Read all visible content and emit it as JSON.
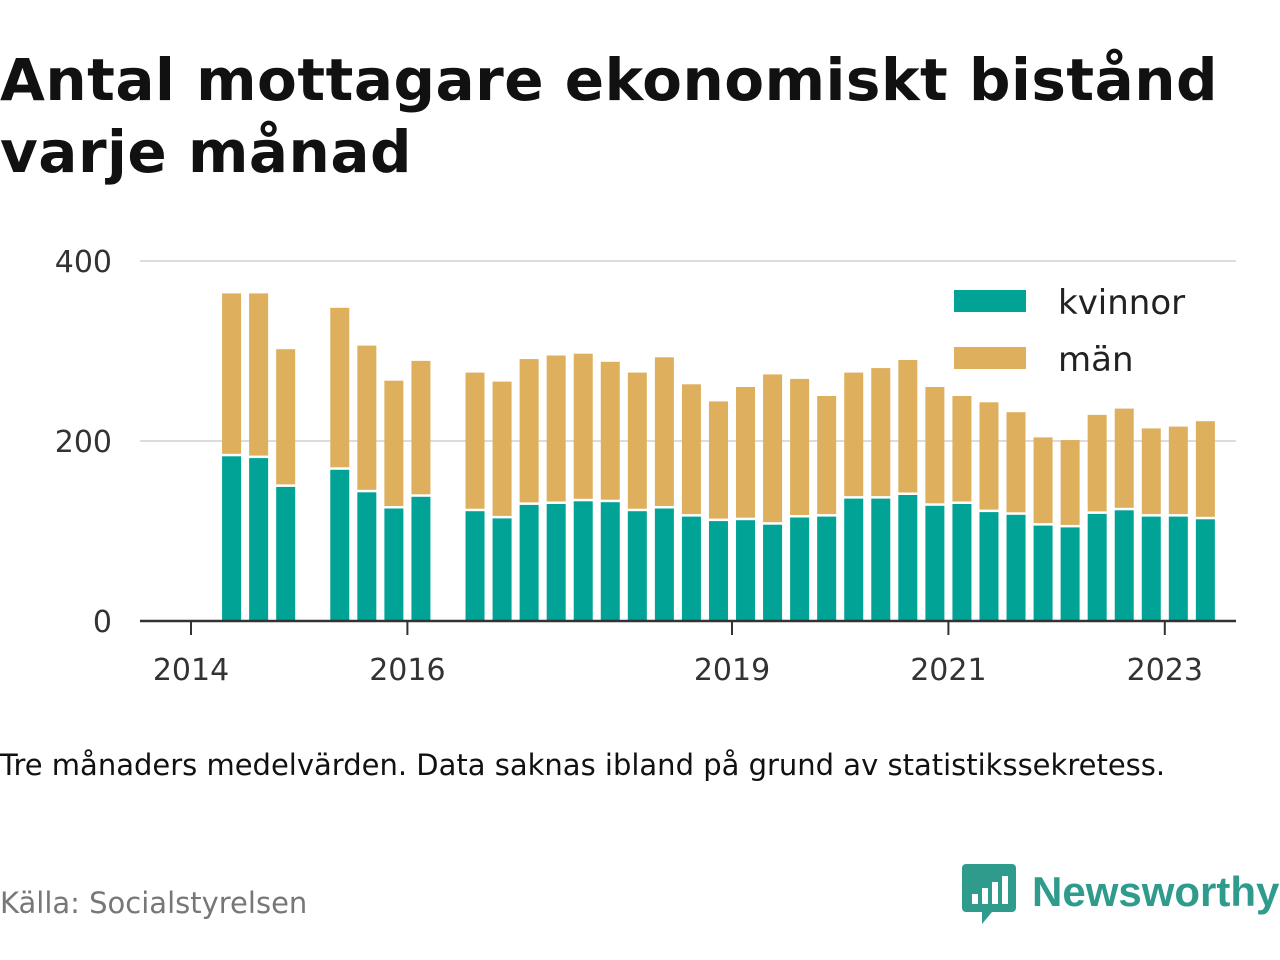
{
  "title": "Antal mottagare ekonomiskt bistånd varje månad",
  "note": "Tre månaders medelvärden. Data saknas ibland på grund av statistikssekretess.",
  "source": "Källa: Socialstyrelsen",
  "brand": {
    "name": "Newsworthy",
    "icon": "newsworthy-logo-icon",
    "color": "#2e9b8c"
  },
  "chart_data": {
    "type": "bar",
    "stacked": true,
    "x_type": "quarterly",
    "x": [
      "2014Q2",
      "2014Q3",
      "2014Q4",
      "2015Q2",
      "2015Q3",
      "2015Q4",
      "2016Q1",
      "2016Q3",
      "2016Q4",
      "2017Q1",
      "2017Q2",
      "2017Q3",
      "2017Q4",
      "2018Q1",
      "2018Q2",
      "2018Q3",
      "2018Q4",
      "2019Q1",
      "2019Q2",
      "2019Q3",
      "2019Q4",
      "2020Q1",
      "2020Q2",
      "2020Q3",
      "2020Q4",
      "2021Q1",
      "2021Q2",
      "2021Q3",
      "2021Q4",
      "2022Q1",
      "2022Q2",
      "2022Q3",
      "2022Q4",
      "2023Q1",
      "2023Q2"
    ],
    "series": [
      {
        "name": "kvinnor",
        "color": "#00a396",
        "values": [
          183,
          181,
          149,
          168,
          143,
          125,
          138,
          122,
          114,
          129,
          130,
          133,
          132,
          122,
          125,
          116,
          111,
          112,
          107,
          115,
          116,
          136,
          136,
          140,
          128,
          130,
          121,
          118,
          106,
          104,
          119,
          123,
          116,
          116,
          113
        ]
      },
      {
        "name": "män",
        "color": "#deaf5c",
        "values": [
          181,
          183,
          153,
          180,
          163,
          142,
          151,
          154,
          152,
          162,
          165,
          164,
          156,
          154,
          168,
          147,
          133,
          148,
          167,
          154,
          134,
          140,
          145,
          150,
          132,
          120,
          122,
          114,
          98,
          97,
          110,
          113,
          98,
          100,
          109
        ]
      }
    ],
    "x_ticks": [
      "2014",
      "2016",
      "2019",
      "2021",
      "2023"
    ],
    "ylim": [
      0,
      400
    ],
    "y_ticks": [
      0,
      200,
      400
    ],
    "grid": true,
    "legend_placement": "top-right",
    "xlabel": "",
    "ylabel": ""
  }
}
